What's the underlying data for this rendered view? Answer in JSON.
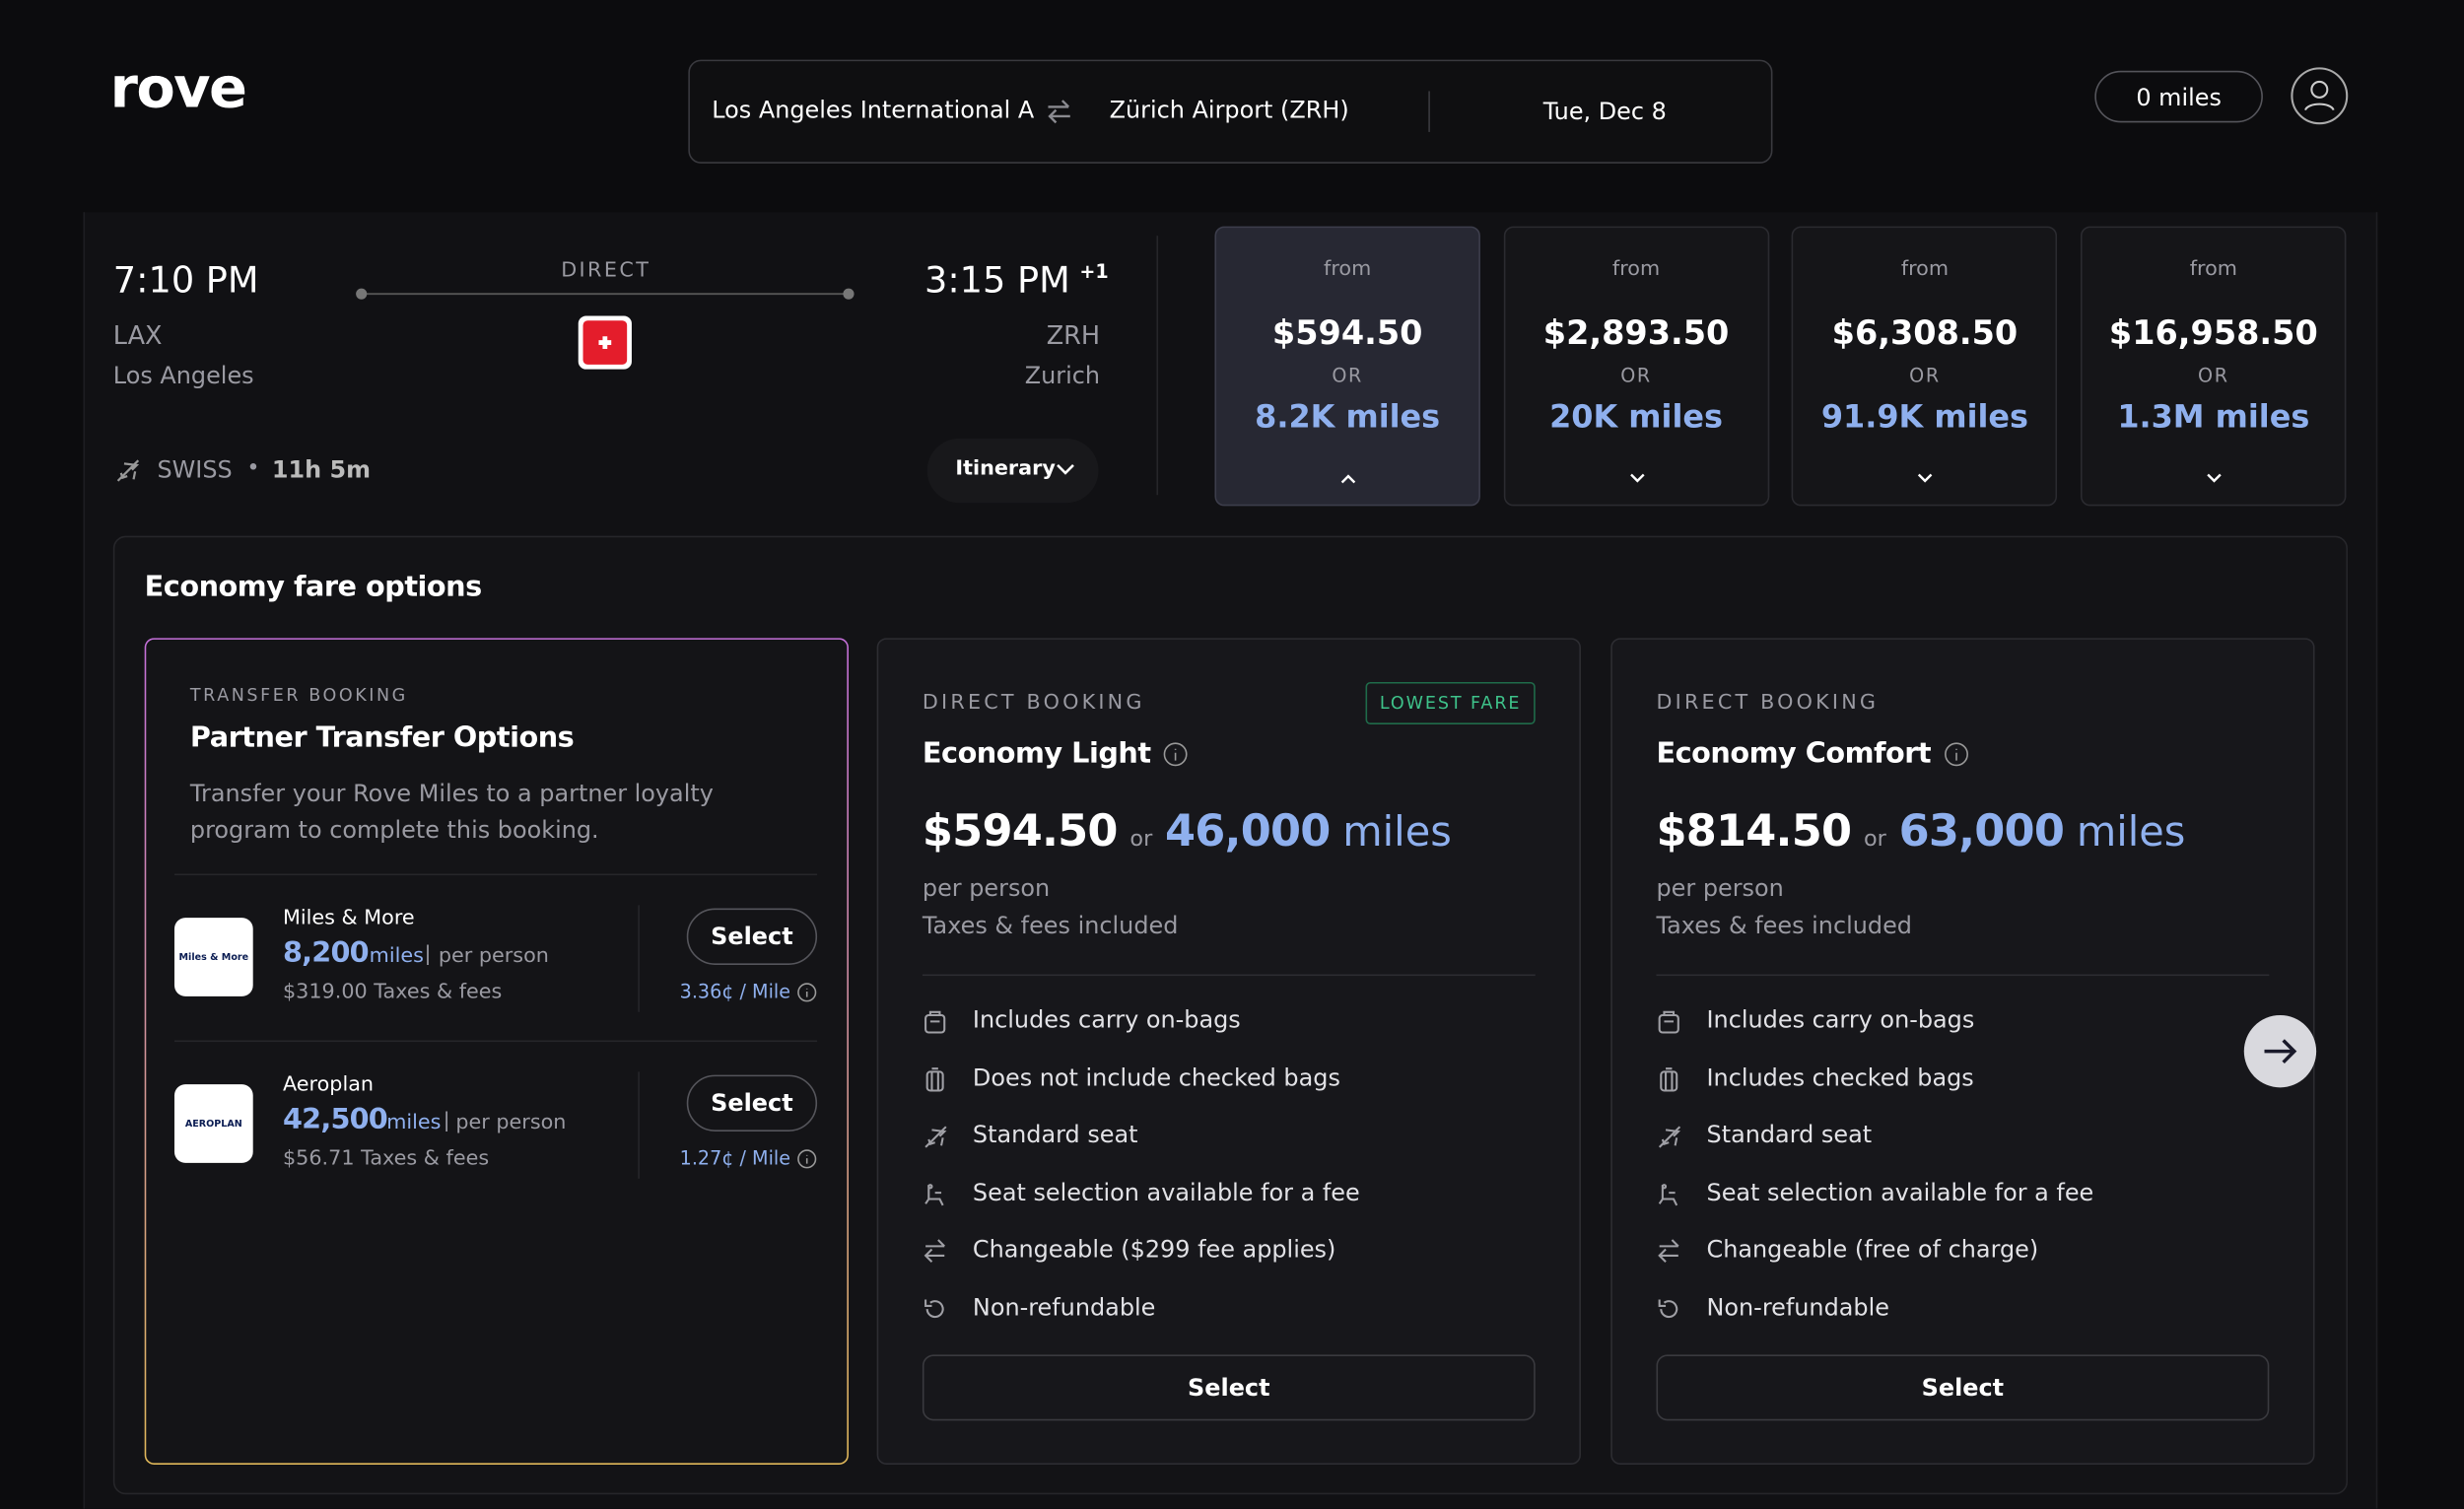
{
  "header": {
    "logo": "rove",
    "origin": "Los Angeles International A",
    "destination": "Zürich Airport (ZRH)",
    "date": "Tue, Dec 8",
    "miles": "0 miles"
  },
  "flight": {
    "depart_time": "7:10 PM",
    "arrive_time": "3:15 PM",
    "day_offset": "+1",
    "stops": "DIRECT",
    "origin_code": "LAX",
    "origin_city": "Los Angeles",
    "dest_code": "ZRH",
    "dest_city": "Zurich",
    "airline": "SWISS",
    "separator": "•",
    "duration": "11h 5m",
    "itinerary": "Itinerary"
  },
  "cabins": [
    {
      "from": "from",
      "price": "$594.50",
      "or": "OR",
      "miles": "8.2K miles"
    },
    {
      "from": "from",
      "price": "$2,893.50",
      "or": "OR",
      "miles": "20K miles"
    },
    {
      "from": "from",
      "price": "$6,308.50",
      "or": "OR",
      "miles": "91.9K miles"
    },
    {
      "from": "from",
      "price": "$16,958.50",
      "or": "OR",
      "miles": "1.3M miles"
    }
  ],
  "fares": {
    "title": "Economy fare options",
    "transfer": {
      "kind": "TRANSFER BOOKING",
      "name": "Partner Transfer Options",
      "description": "Transfer your Rove Miles to a partner loyalty program to complete this booking.",
      "partners": [
        {
          "logo": "Miles & More",
          "name": "Miles & More",
          "miles": "8,200",
          "unit": "miles",
          "sep": "|",
          "per": "per person",
          "taxes": "$319.00 Taxes & fees",
          "button": "Select",
          "rate": "3.36¢ / Mile"
        },
        {
          "logo": "AEROPLAN",
          "name": "Aeroplan",
          "miles": "42,500",
          "unit": "miles",
          "sep": "|",
          "per": "per person",
          "taxes": "$56.71 Taxes & fees",
          "button": "Select",
          "rate": "1.27¢ / Mile"
        }
      ]
    },
    "options": [
      {
        "kind": "DIRECT BOOKING",
        "badge": "LOWEST FARE",
        "name": "Economy Light",
        "price": "$594.50",
        "or": "or",
        "miles": "46,000",
        "unit": "miles",
        "per": "per person",
        "taxes": "Taxes & fees included",
        "features": [
          "Includes carry on-bags",
          "Does not include checked bags",
          "Standard seat",
          "Seat selection available for a fee",
          "Changeable ($299 fee applies)",
          "Non-refundable"
        ],
        "button": "Select"
      },
      {
        "kind": "DIRECT BOOKING",
        "name": "Economy Comfort",
        "price": "$814.50",
        "or": "or",
        "miles": "63,000",
        "unit": "miles",
        "per": "per person",
        "taxes": "Taxes & fees included",
        "features": [
          "Includes carry on-bags",
          "Includes checked bags",
          "Standard seat",
          "Seat selection available for a fee",
          "Changeable (free of charge)",
          "Non-refundable"
        ],
        "button": "Select"
      }
    ]
  }
}
